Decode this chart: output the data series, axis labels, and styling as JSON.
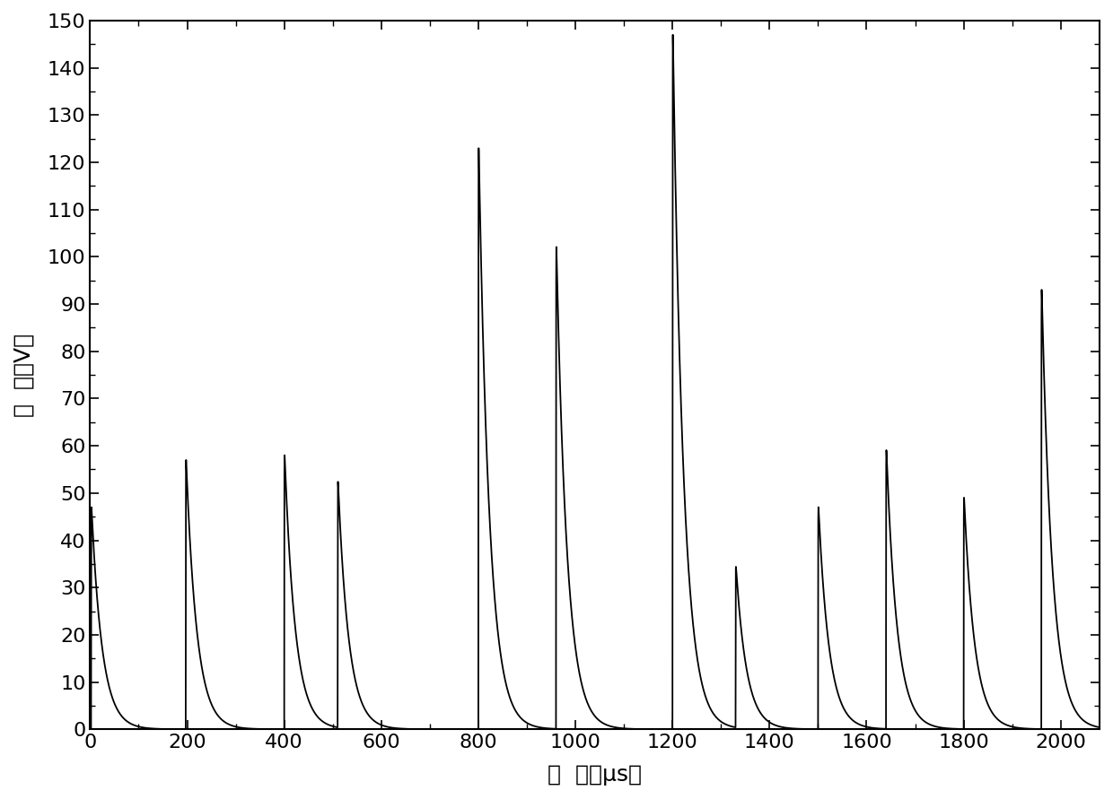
{
  "xlabel": "时  间（μs）",
  "ylabel": "电  压（V）",
  "xlim": [
    0,
    2080
  ],
  "ylim": [
    0,
    150
  ],
  "xticks": [
    0,
    200,
    400,
    600,
    800,
    1000,
    1200,
    1400,
    1600,
    1800,
    2000
  ],
  "yticks": [
    0,
    10,
    20,
    30,
    40,
    50,
    60,
    70,
    80,
    90,
    100,
    110,
    120,
    130,
    140,
    150
  ],
  "background_color": "#ffffff",
  "line_color": "#000000",
  "pulses": [
    {
      "t0": 2,
      "amplitude": 47,
      "rise": 0.15,
      "decay": 22
    },
    {
      "t0": 197,
      "amplitude": 57,
      "rise": 0.15,
      "decay": 22
    },
    {
      "t0": 400,
      "amplitude": 58,
      "rise": 0.15,
      "decay": 22
    },
    {
      "t0": 510,
      "amplitude": 52,
      "rise": 0.15,
      "decay": 22
    },
    {
      "t0": 800,
      "amplitude": 123,
      "rise": 0.15,
      "decay": 22
    },
    {
      "t0": 960,
      "amplitude": 102,
      "rise": 0.15,
      "decay": 22
    },
    {
      "t0": 1200,
      "amplitude": 147,
      "rise": 0.15,
      "decay": 22
    },
    {
      "t0": 1330,
      "amplitude": 34,
      "rise": 0.15,
      "decay": 22
    },
    {
      "t0": 1500,
      "amplitude": 47,
      "rise": 0.15,
      "decay": 22
    },
    {
      "t0": 1640,
      "amplitude": 59,
      "rise": 0.15,
      "decay": 22
    },
    {
      "t0": 1800,
      "amplitude": 49,
      "rise": 0.15,
      "decay": 22
    },
    {
      "t0": 1960,
      "amplitude": 93,
      "rise": 0.15,
      "decay": 22
    }
  ],
  "figsize": [
    12.4,
    8.91
  ],
  "dpi": 100,
  "tick_fontsize": 16,
  "label_fontsize": 18,
  "linewidth": 1.3
}
